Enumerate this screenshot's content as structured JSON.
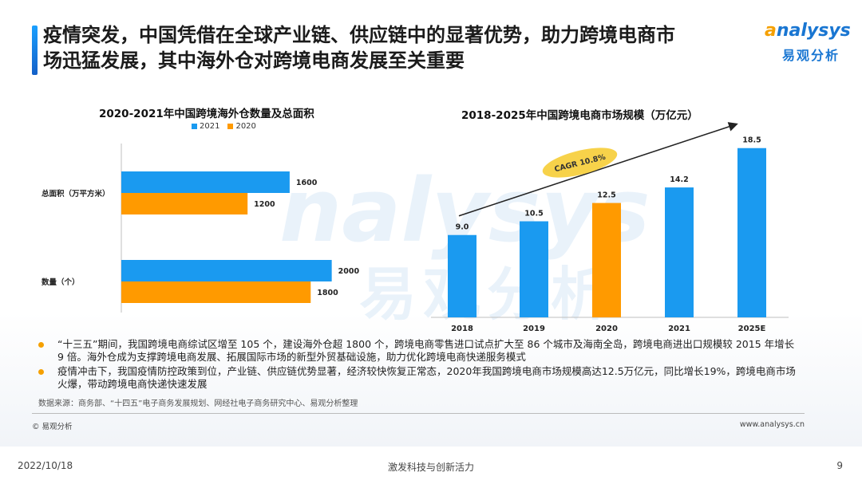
{
  "header": {
    "title_line1": "疫情突发，中国凭借在全球产业链、供应链中的显著优势，助力跨境电商市",
    "title_line2": "场迅猛发展，其中海外仓对跨境电商发展至关重要"
  },
  "logo": {
    "en_pre": "",
    "en_o": "a",
    "en_rest": "nalysys",
    "cn": "易观分析"
  },
  "colors": {
    "blue": "#1a9af0",
    "orange": "#ff9a00",
    "accent": "#1976d2",
    "ellipse": "#f7d24a"
  },
  "chart_data": [
    {
      "type": "bar",
      "orientation": "horizontal",
      "title": "2020-2021年中国跨境海外仓数量及总面积",
      "categories": [
        "总面积（万平方米）",
        "数量（个）"
      ],
      "series": [
        {
          "name": "2021",
          "values": [
            1600,
            2000
          ]
        },
        {
          "name": "2020",
          "values": [
            1200,
            1800
          ]
        }
      ],
      "xlim": [
        0,
        2200
      ],
      "legend": "top-left"
    },
    {
      "type": "bar",
      "title": "2018-2025年中国跨境电商市场规模（万亿元）",
      "categories": [
        "2018",
        "2019",
        "2020",
        "2021",
        "2025E"
      ],
      "values": [
        9.0,
        10.5,
        12.5,
        14.2,
        18.5
      ],
      "value_labels": [
        "9.0",
        "10.5",
        "12.5",
        "14.2",
        "18.5"
      ],
      "highlight_index": 2,
      "annotation": "CAGR 10.8%",
      "ylim": [
        0,
        19
      ]
    }
  ],
  "bullets": [
    "“十三五”期间，我国跨境电商综试区增至 105 个，建设海外仓超 1800 个，跨境电商零售进口试点扩大至 86 个城市及海南全岛，跨境电商进出口规模较 2015 年增长 9 倍。海外仓成为支撑跨境电商发展、拓展国际市场的新型外贸基础设施，助力优化跨境电商快递服务模式",
    "疫情冲击下，我国疫情防控政策到位，产业链、供应链优势显著，经济较快恢复正常态，2020年我国跨境电商市场规模高达12.5万亿元，同比增长19%，跨境电商市场火爆，带动跨境电商快递快速发展"
  ],
  "source": "数据来源：商务部、“十四五”电子商务发展规划、网经社电子商务研究中心、易观分析整理",
  "copyright": "© 易观分析",
  "website": "www.analysys.cn",
  "footer": {
    "date": "2022/10/18",
    "center": "激发科技与创新活力",
    "page": "9"
  }
}
